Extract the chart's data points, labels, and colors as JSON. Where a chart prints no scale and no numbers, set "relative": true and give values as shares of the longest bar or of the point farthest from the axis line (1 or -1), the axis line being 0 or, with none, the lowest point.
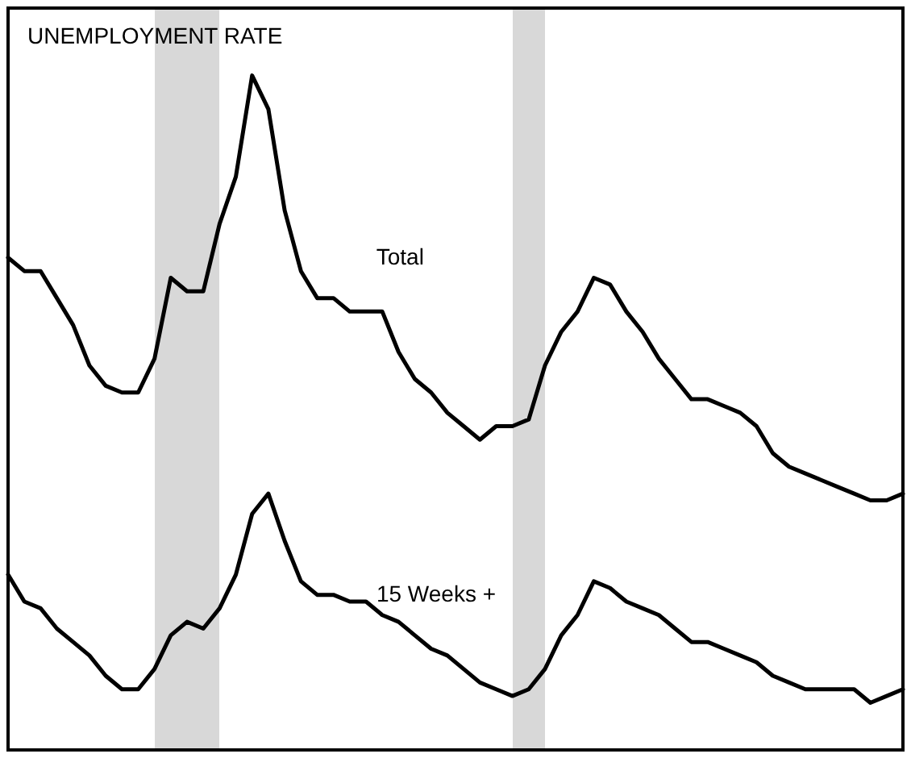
{
  "chart_data": {
    "type": "line",
    "title": "UNEMPLOYMENT RATE",
    "relative": true,
    "grid": false,
    "legend": false,
    "marker": "none",
    "categories": [
      null,
      null,
      null,
      null,
      null,
      null,
      null,
      null,
      null,
      null,
      null,
      null,
      null,
      null,
      null,
      null,
      null,
      null,
      null,
      null,
      null,
      null,
      null,
      null,
      null,
      null,
      null,
      null,
      null,
      null,
      null,
      null,
      null,
      null,
      null,
      null,
      null,
      null,
      null,
      null,
      null,
      null,
      null,
      null,
      null,
      null,
      null,
      null,
      null,
      null,
      null,
      null,
      null,
      null,
      null,
      null
    ],
    "series": [
      {
        "name": "Total",
        "color": "#000000",
        "values": [
          0.73,
          0.71,
          0.71,
          0.67,
          0.63,
          0.57,
          0.54,
          0.53,
          0.53,
          0.58,
          0.7,
          0.68,
          0.68,
          0.78,
          0.85,
          1.0,
          0.95,
          0.8,
          0.71,
          0.67,
          0.67,
          0.65,
          0.65,
          0.65,
          0.59,
          0.55,
          0.53,
          0.5,
          0.48,
          0.46,
          0.48,
          0.48,
          0.49,
          0.57,
          0.62,
          0.65,
          0.7,
          0.69,
          0.65,
          0.62,
          0.58,
          0.55,
          0.52,
          0.52,
          0.51,
          0.5,
          0.48,
          0.44,
          0.42,
          0.41,
          0.4,
          0.39,
          0.38,
          0.37,
          0.37,
          0.38
        ]
      },
      {
        "name": "15 Weeks +",
        "color": "#000000",
        "values": [
          0.26,
          0.22,
          0.21,
          0.18,
          0.16,
          0.14,
          0.11,
          0.09,
          0.09,
          0.12,
          0.17,
          0.19,
          0.18,
          0.21,
          0.26,
          0.35,
          0.38,
          0.31,
          0.25,
          0.23,
          0.23,
          0.22,
          0.22,
          0.2,
          0.19,
          0.17,
          0.15,
          0.14,
          0.12,
          0.1,
          0.09,
          0.08,
          0.09,
          0.12,
          0.17,
          0.2,
          0.25,
          0.24,
          0.22,
          0.21,
          0.2,
          0.18,
          0.16,
          0.16,
          0.15,
          0.14,
          0.13,
          0.11,
          0.1,
          0.09,
          0.09,
          0.09,
          0.09,
          0.07,
          0.08,
          0.09
        ]
      }
    ]
  }
}
